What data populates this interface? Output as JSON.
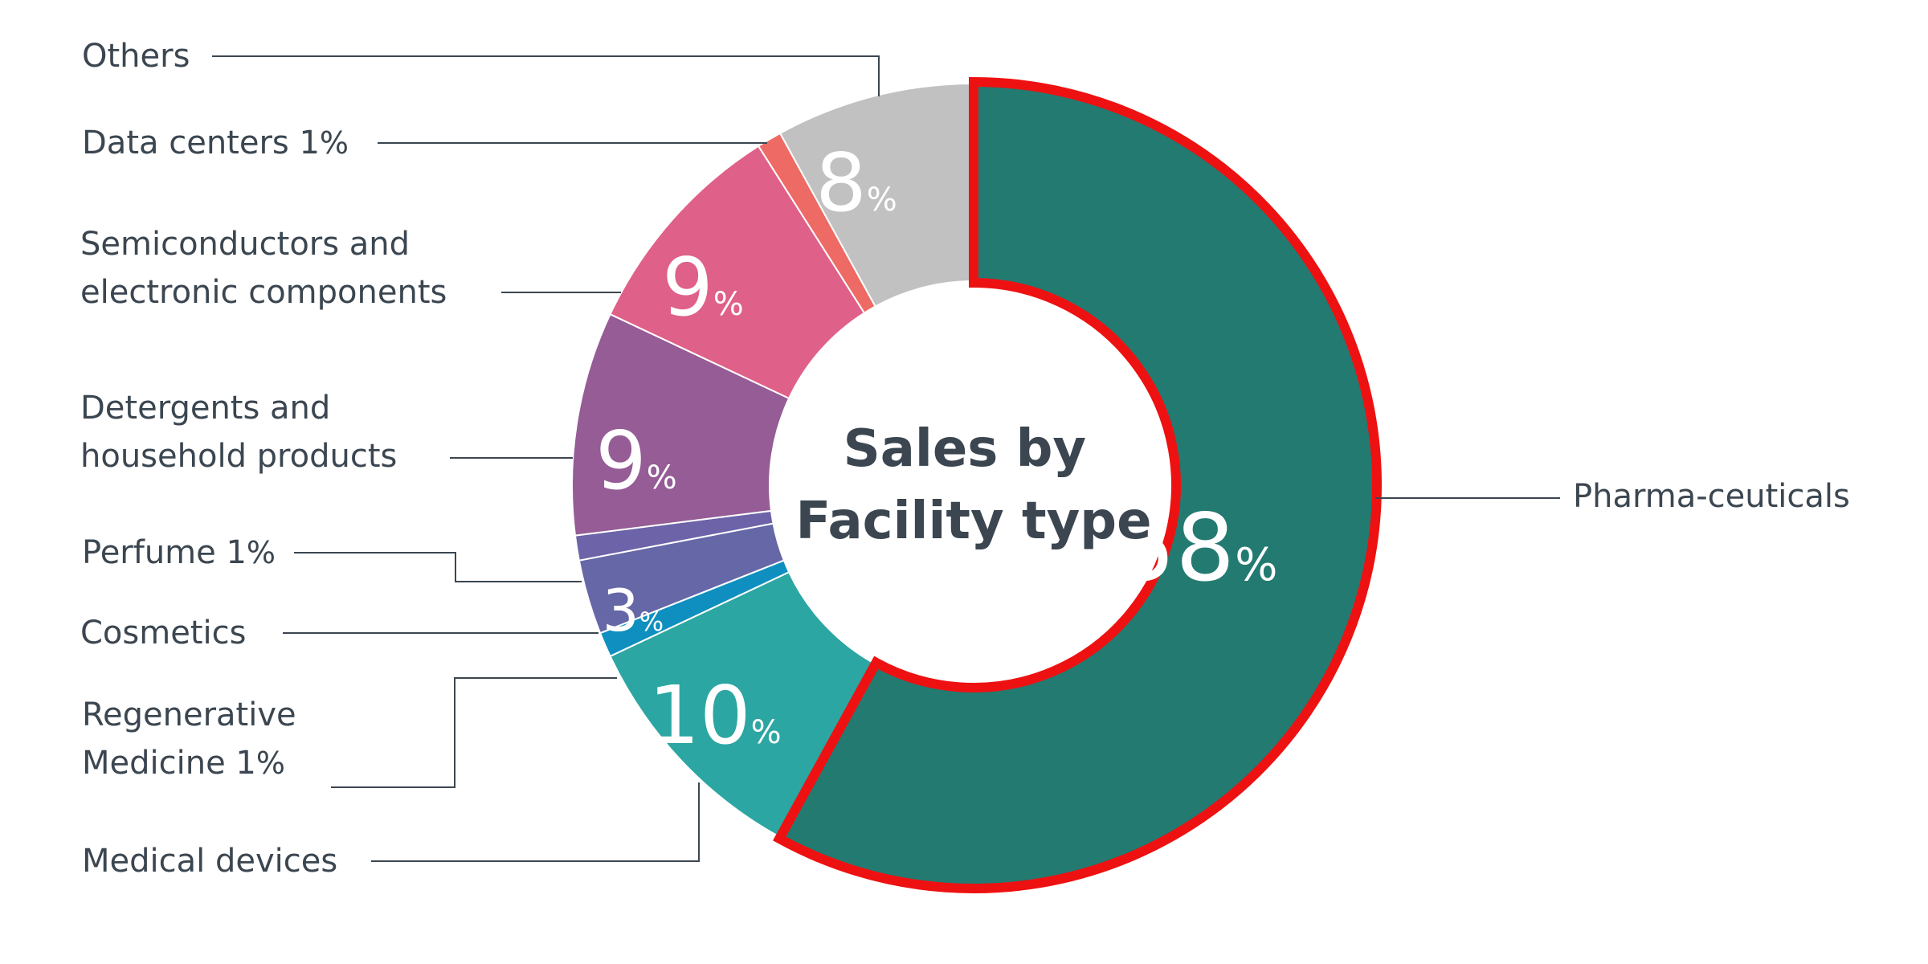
{
  "chart_data": {
    "type": "pie",
    "title": "",
    "center_title": [
      "Sales by",
      "Facility type"
    ],
    "slices": [
      {
        "key": "pharma",
        "label": "Pharma-ceuticals",
        "value": 58,
        "data_label": "58",
        "color": "#237a71",
        "highlighted": true,
        "highlight_color": "#ee1111"
      },
      {
        "key": "medical",
        "label": "Medical devices",
        "value": 10,
        "data_label": "10",
        "color": "#2ba6a2"
      },
      {
        "key": "regen",
        "label": "Regenerative\nMedicine 1%",
        "value": 1,
        "data_label": "",
        "color": "#0f8fbf"
      },
      {
        "key": "cosmetics",
        "label": "Cosmetics",
        "value": 3,
        "data_label": "3",
        "color": "#6667a7"
      },
      {
        "key": "perfume",
        "label": "Perfume 1%",
        "value": 1,
        "data_label": "",
        "color": "#6c63a8"
      },
      {
        "key": "detergents",
        "label": "Detergents and\nhousehold products",
        "value": 9,
        "data_label": "9",
        "color": "#955c96"
      },
      {
        "key": "semis",
        "label": "Semiconductors and\nelectronic components",
        "value": 9,
        "data_label": "9",
        "color": "#df6088"
      },
      {
        "key": "datacenters",
        "label": "Data centers 1%",
        "value": 1,
        "data_label": "",
        "color": "#ee6a64"
      },
      {
        "key": "others",
        "label": "Others",
        "value": 8,
        "data_label": "8",
        "color": "#c1c1c1"
      }
    ],
    "percent_sign": "%",
    "legend": "none"
  }
}
